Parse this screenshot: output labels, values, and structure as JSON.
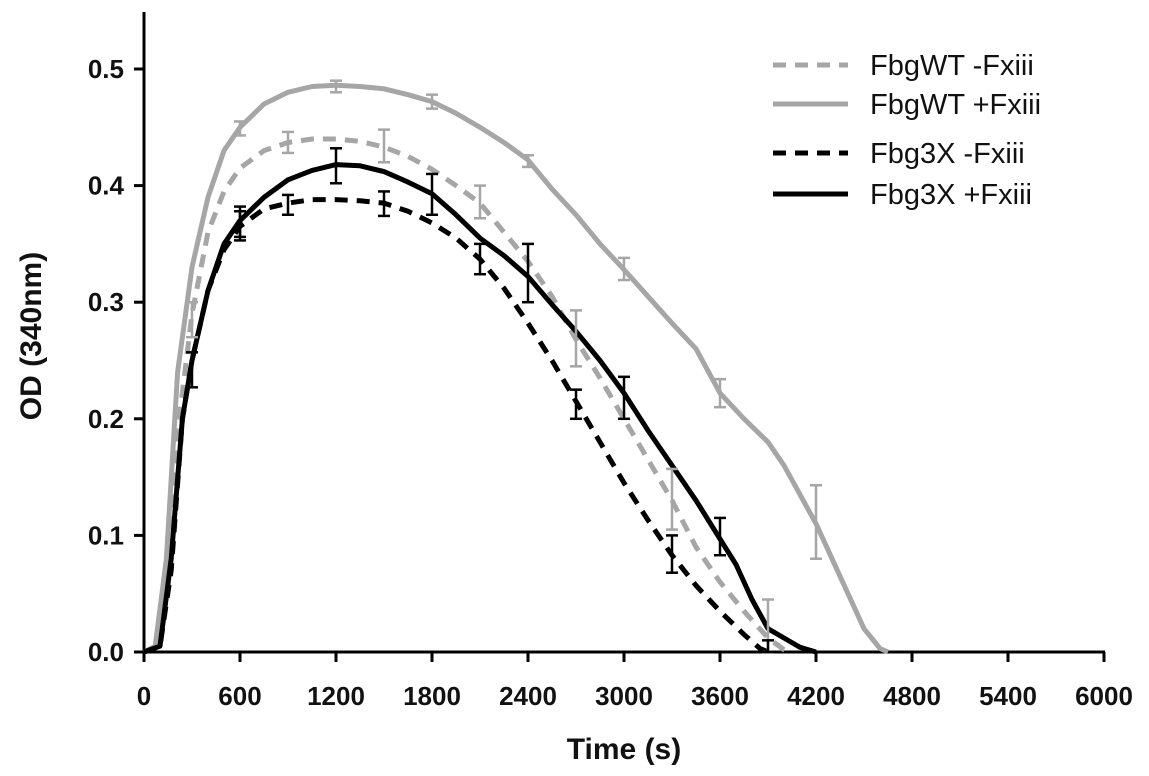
{
  "chart_data": {
    "type": "line",
    "title": "",
    "xlabel": "Time (s)",
    "ylabel": "OD (340nm)",
    "xlim": [
      0,
      6000
    ],
    "ylim": [
      0,
      0.5
    ],
    "x_ticks": [
      0,
      600,
      1200,
      1800,
      2400,
      3000,
      3600,
      4200,
      4800,
      5400,
      6000
    ],
    "y_ticks": [
      "0.0",
      "0.1",
      "0.2",
      "0.3",
      "0.4",
      "0.5"
    ],
    "y_tick_values": [
      0,
      0.1,
      0.2,
      0.3,
      0.4,
      0.5
    ],
    "grid": false,
    "legend_position": "top-right",
    "series": [
      {
        "name": "FbgWT -Fxiii",
        "color": "#a6a6a6",
        "dash": true,
        "points": [
          [
            0,
            0
          ],
          [
            80,
            0.005
          ],
          [
            150,
            0.06
          ],
          [
            220,
            0.2
          ],
          [
            300,
            0.29
          ],
          [
            400,
            0.36
          ],
          [
            500,
            0.395
          ],
          [
            600,
            0.415
          ],
          [
            750,
            0.43
          ],
          [
            900,
            0.437
          ],
          [
            1050,
            0.44
          ],
          [
            1200,
            0.44
          ],
          [
            1350,
            0.438
          ],
          [
            1500,
            0.433
          ],
          [
            1650,
            0.425
          ],
          [
            1800,
            0.414
          ],
          [
            1950,
            0.4
          ],
          [
            2100,
            0.385
          ],
          [
            2250,
            0.36
          ],
          [
            2400,
            0.335
          ],
          [
            2550,
            0.305
          ],
          [
            2700,
            0.268
          ],
          [
            2850,
            0.235
          ],
          [
            3000,
            0.2
          ],
          [
            3150,
            0.165
          ],
          [
            3300,
            0.13
          ],
          [
            3450,
            0.09
          ],
          [
            3600,
            0.06
          ],
          [
            3750,
            0.035
          ],
          [
            3900,
            0.012
          ],
          [
            4000,
            0.002
          ],
          [
            4050,
            0
          ]
        ],
        "error_bars": [
          [
            300,
            0.27,
            0.3
          ],
          [
            900,
            0.428,
            0.446
          ],
          [
            1500,
            0.42,
            0.448
          ],
          [
            2100,
            0.372,
            0.4
          ],
          [
            2700,
            0.245,
            0.293
          ],
          [
            3300,
            0.105,
            0.157
          ],
          [
            3900,
            0,
            0.045
          ]
        ]
      },
      {
        "name": "FbgWT +Fxiii",
        "color": "#a6a6a6",
        "dash": false,
        "points": [
          [
            0,
            0
          ],
          [
            70,
            0.005
          ],
          [
            140,
            0.08
          ],
          [
            210,
            0.24
          ],
          [
            300,
            0.33
          ],
          [
            400,
            0.39
          ],
          [
            500,
            0.43
          ],
          [
            600,
            0.45
          ],
          [
            750,
            0.47
          ],
          [
            900,
            0.48
          ],
          [
            1050,
            0.485
          ],
          [
            1200,
            0.486
          ],
          [
            1350,
            0.485
          ],
          [
            1500,
            0.483
          ],
          [
            1650,
            0.478
          ],
          [
            1800,
            0.472
          ],
          [
            1950,
            0.462
          ],
          [
            2100,
            0.45
          ],
          [
            2250,
            0.437
          ],
          [
            2400,
            0.422
          ],
          [
            2550,
            0.397
          ],
          [
            2700,
            0.375
          ],
          [
            2850,
            0.35
          ],
          [
            3000,
            0.328
          ],
          [
            3150,
            0.305
          ],
          [
            3300,
            0.282
          ],
          [
            3450,
            0.26
          ],
          [
            3600,
            0.222
          ],
          [
            3750,
            0.2
          ],
          [
            3900,
            0.18
          ],
          [
            4000,
            0.16
          ],
          [
            4100,
            0.135
          ],
          [
            4200,
            0.11
          ],
          [
            4300,
            0.08
          ],
          [
            4400,
            0.05
          ],
          [
            4500,
            0.02
          ],
          [
            4600,
            0.003
          ],
          [
            4650,
            0
          ]
        ],
        "error_bars": [
          [
            600,
            0.443,
            0.455
          ],
          [
            1200,
            0.48,
            0.49
          ],
          [
            1800,
            0.466,
            0.478
          ],
          [
            2400,
            0.416,
            0.426
          ],
          [
            3000,
            0.319,
            0.338
          ],
          [
            3600,
            0.21,
            0.234
          ],
          [
            4200,
            0.08,
            0.143
          ]
        ]
      },
      {
        "name": "Fbg3X -Fxiii",
        "color": "#000000",
        "dash": true,
        "points": [
          [
            0,
            0
          ],
          [
            100,
            0.005
          ],
          [
            170,
            0.07
          ],
          [
            240,
            0.2
          ],
          [
            300,
            0.25
          ],
          [
            400,
            0.31
          ],
          [
            500,
            0.345
          ],
          [
            600,
            0.365
          ],
          [
            750,
            0.38
          ],
          [
            900,
            0.385
          ],
          [
            1050,
            0.388
          ],
          [
            1200,
            0.388
          ],
          [
            1350,
            0.387
          ],
          [
            1500,
            0.385
          ],
          [
            1650,
            0.378
          ],
          [
            1800,
            0.368
          ],
          [
            1950,
            0.355
          ],
          [
            2100,
            0.337
          ],
          [
            2250,
            0.312
          ],
          [
            2400,
            0.282
          ],
          [
            2550,
            0.25
          ],
          [
            2700,
            0.215
          ],
          [
            2850,
            0.18
          ],
          [
            3000,
            0.145
          ],
          [
            3150,
            0.113
          ],
          [
            3300,
            0.083
          ],
          [
            3450,
            0.057
          ],
          [
            3600,
            0.035
          ],
          [
            3750,
            0.015
          ],
          [
            3850,
            0.003
          ],
          [
            3900,
            0
          ]
        ],
        "error_bars": [
          [
            300,
            0.227,
            0.257
          ],
          [
            600,
            0.353,
            0.378
          ],
          [
            900,
            0.375,
            0.392
          ],
          [
            1500,
            0.374,
            0.395
          ],
          [
            2100,
            0.324,
            0.35
          ],
          [
            2700,
            0.2,
            0.225
          ],
          [
            3300,
            0.068,
            0.1
          ],
          [
            3900,
            0,
            0.01
          ]
        ]
      },
      {
        "name": "Fbg3X +Fxiii",
        "color": "#000000",
        "dash": false,
        "points": [
          [
            0,
            0
          ],
          [
            100,
            0.005
          ],
          [
            170,
            0.08
          ],
          [
            240,
            0.2
          ],
          [
            300,
            0.25
          ],
          [
            400,
            0.31
          ],
          [
            500,
            0.35
          ],
          [
            600,
            0.37
          ],
          [
            750,
            0.39
          ],
          [
            900,
            0.405
          ],
          [
            1050,
            0.413
          ],
          [
            1200,
            0.418
          ],
          [
            1350,
            0.417
          ],
          [
            1500,
            0.412
          ],
          [
            1650,
            0.403
          ],
          [
            1800,
            0.393
          ],
          [
            1950,
            0.375
          ],
          [
            2100,
            0.355
          ],
          [
            2250,
            0.34
          ],
          [
            2400,
            0.322
          ],
          [
            2550,
            0.298
          ],
          [
            2700,
            0.275
          ],
          [
            2850,
            0.25
          ],
          [
            3000,
            0.222
          ],
          [
            3150,
            0.19
          ],
          [
            3300,
            0.16
          ],
          [
            3450,
            0.13
          ],
          [
            3600,
            0.097
          ],
          [
            3700,
            0.075
          ],
          [
            3800,
            0.045
          ],
          [
            3900,
            0.02
          ],
          [
            4000,
            0.012
          ],
          [
            4100,
            0.004
          ],
          [
            4200,
            0
          ]
        ],
        "error_bars": [
          [
            600,
            0.356,
            0.382
          ],
          [
            1200,
            0.402,
            0.432
          ],
          [
            1800,
            0.375,
            0.41
          ],
          [
            2400,
            0.3,
            0.35
          ],
          [
            3000,
            0.2,
            0.236
          ],
          [
            3600,
            0.083,
            0.115
          ]
        ]
      }
    ]
  }
}
